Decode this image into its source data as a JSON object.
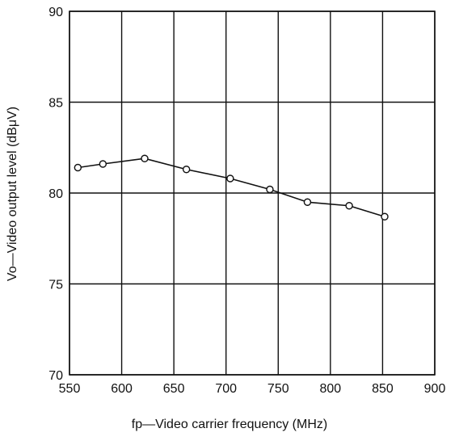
{
  "chart_data": {
    "type": "line",
    "xlabel": "fp—Video carrier frequency (MHz)",
    "ylabel": "Vo—Video output level (dBμV)",
    "xlim": [
      550,
      900
    ],
    "ylim": [
      70,
      90
    ],
    "x_ticks": [
      550,
      600,
      650,
      700,
      750,
      800,
      850,
      900
    ],
    "y_ticks": [
      70,
      75,
      80,
      85,
      90
    ],
    "grid": true,
    "series": [
      {
        "x": [
          558,
          582,
          622,
          662,
          704,
          742,
          778,
          818,
          852
        ],
        "values": [
          81.4,
          81.6,
          81.9,
          81.3,
          80.8,
          80.2,
          79.5,
          79.3,
          78.7
        ]
      }
    ]
  }
}
